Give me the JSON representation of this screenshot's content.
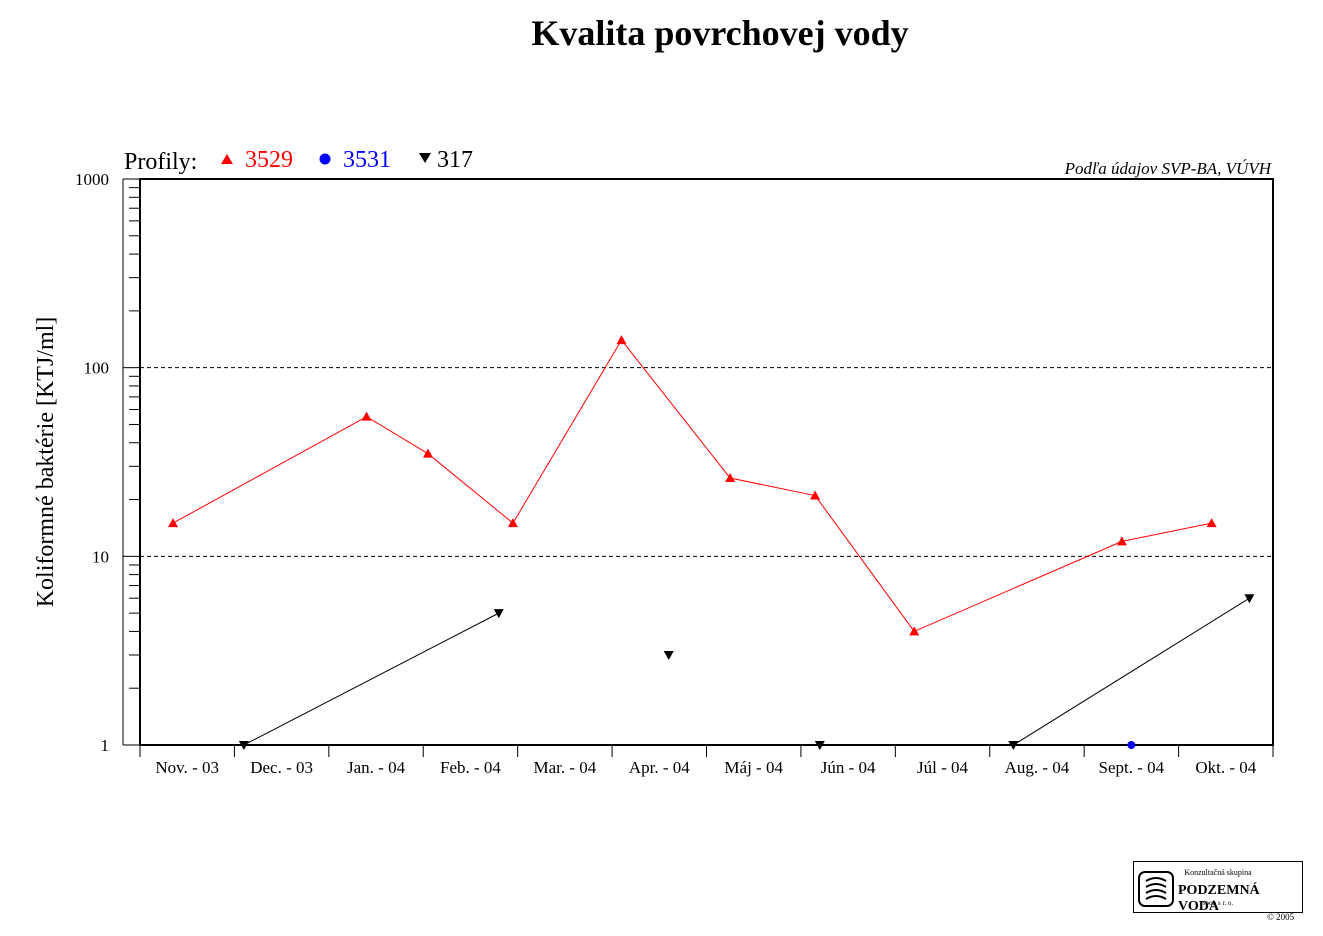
{
  "title": "Kvalita povrchovej vody",
  "legend_prefix": "Profily:",
  "source_note": "Podľa údajov SVP-BA, VÚVH",
  "logo": {
    "top": "Konzultačná skupina",
    "name": "PODZEMNÁ VODA",
    "bottom": "spol. s r. o.",
    "copyright": "© 2005"
  },
  "chart_data": {
    "type": "line",
    "categories": [
      "Nov. - 03",
      "Dec. - 03",
      "Jan. - 04",
      "Feb. - 04",
      "Mar. - 04",
      "Apr. - 04",
      "Máj - 04",
      "Jún - 04",
      "Júl - 04",
      "Aug. - 04",
      "Sept. - 04",
      "Okt. - 04"
    ],
    "ylabel": "Koliformné  baktérie [KTJ/ml]",
    "yscale": "log",
    "ylim": [
      1,
      1000
    ],
    "yticks": [
      1,
      10,
      100,
      1000
    ],
    "ytick_labels": [
      "1",
      "10",
      "100",
      "1000"
    ],
    "grid": "dashed horizontal at 10 and 100",
    "series": [
      {
        "name": "3529",
        "color": "#ff0000",
        "marker": "triangle-up",
        "connected": true,
        "points": [
          {
            "x": 0.35,
            "y": 15
          },
          {
            "x": 2.4,
            "y": 55
          },
          {
            "x": 3.05,
            "y": 35
          },
          {
            "x": 3.95,
            "y": 15
          },
          {
            "x": 5.1,
            "y": 140
          },
          {
            "x": 6.25,
            "y": 26
          },
          {
            "x": 7.15,
            "y": 21
          },
          {
            "x": 8.2,
            "y": 4
          },
          {
            "x": 10.4,
            "y": 12
          },
          {
            "x": 11.35,
            "y": 15
          }
        ]
      },
      {
        "name": "3531",
        "color": "#0000ff",
        "marker": "circle",
        "connected": false,
        "points": [
          {
            "x": 10.5,
            "y": 1
          }
        ]
      },
      {
        "name": "317",
        "color": "#000000",
        "marker": "triangle-down",
        "connected": true,
        "points": [
          {
            "x": 1.1,
            "y": 1,
            "seg": 0
          },
          {
            "x": 3.8,
            "y": 5,
            "seg": 0
          },
          {
            "x": 5.6,
            "y": 3,
            "seg": 1
          },
          {
            "x": 7.2,
            "y": 1,
            "seg": 2
          },
          {
            "x": 9.25,
            "y": 1,
            "seg": 3
          },
          {
            "x": 11.75,
            "y": 6,
            "seg": 3
          }
        ]
      }
    ]
  }
}
